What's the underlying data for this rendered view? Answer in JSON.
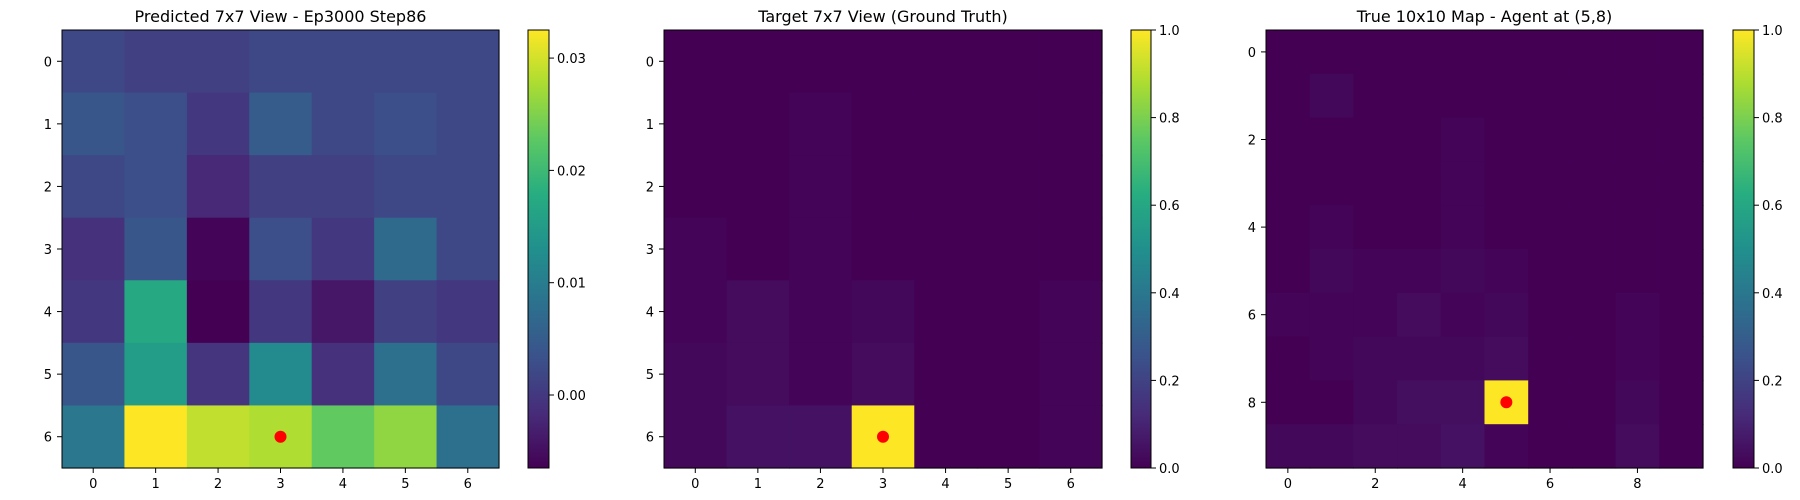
{
  "chart_data": [
    {
      "type": "heatmap",
      "title": "Predicted 7x7 View - Ep3000 Step86",
      "x_ticks": [
        "0",
        "1",
        "2",
        "3",
        "4",
        "5",
        "6"
      ],
      "y_ticks": [
        "0",
        "1",
        "2",
        "3",
        "4",
        "5",
        "6"
      ],
      "colormap": "viridis",
      "vmin": -0.0065,
      "vmax": 0.0325,
      "colorbar_ticks": [
        0.03,
        0.02,
        0.01,
        0.0,
        -0.01
      ],
      "colorbar_tick_labels": [
        "0.03",
        "0.02",
        "0.01",
        "0.00",
        "−0.01"
      ],
      "values": [
        [
          0.002,
          0.001,
          0.001,
          0.002,
          0.002,
          0.002,
          0.002
        ],
        [
          0.004,
          0.003,
          0.0,
          0.005,
          0.002,
          0.003,
          0.002
        ],
        [
          0.002,
          0.003,
          -0.002,
          0.001,
          0.001,
          0.002,
          0.002
        ],
        [
          -0.001,
          0.004,
          -0.006,
          0.003,
          0.0,
          0.007,
          0.002
        ],
        [
          0.0,
          0.017,
          -0.0065,
          0.0,
          -0.004,
          0.001,
          0.0
        ],
        [
          0.004,
          0.015,
          -0.0005,
          0.012,
          -0.001,
          0.008,
          0.002
        ],
        [
          0.009,
          0.0325,
          0.029,
          0.028,
          0.023,
          0.026,
          0.008
        ]
      ],
      "marker": {
        "x": 3,
        "y": 6,
        "color": "#ff0000"
      }
    },
    {
      "type": "heatmap",
      "title": "Target 7x7 View (Ground Truth)",
      "x_ticks": [
        "0",
        "1",
        "2",
        "3",
        "4",
        "5",
        "6"
      ],
      "y_ticks": [
        "0",
        "1",
        "2",
        "3",
        "4",
        "5",
        "6"
      ],
      "colormap": "viridis",
      "vmin": 0,
      "vmax": 1,
      "colorbar_ticks": [
        1.0,
        0.8,
        0.6,
        0.4,
        0.2,
        0.0
      ],
      "colorbar_tick_labels": [
        "1.0",
        "0.8",
        "0.6",
        "0.4",
        "0.2",
        "0.0"
      ],
      "values": [
        [
          0.0,
          0.0,
          0.0,
          0.0,
          0.0,
          0.0,
          0.0
        ],
        [
          0.0,
          0.0,
          0.01,
          0.0,
          0.0,
          0.0,
          0.0
        ],
        [
          0.0,
          0.0,
          0.01,
          0.0,
          0.0,
          0.0,
          0.0
        ],
        [
          0.01,
          0.0,
          0.01,
          0.0,
          0.0,
          0.0,
          0.0
        ],
        [
          0.01,
          0.03,
          0.01,
          0.02,
          0.0,
          0.0,
          0.01
        ],
        [
          0.02,
          0.03,
          0.01,
          0.03,
          0.0,
          0.0,
          0.01
        ],
        [
          0.02,
          0.05,
          0.05,
          1.0,
          0.0,
          0.0,
          0.01
        ]
      ],
      "marker": {
        "x": 3,
        "y": 6,
        "color": "#ff0000"
      }
    },
    {
      "type": "heatmap",
      "title": "True 10x10 Map - Agent at (5,8)",
      "x_ticks": [
        "0",
        "2",
        "4",
        "6",
        "8"
      ],
      "y_ticks": [
        "0",
        "2",
        "4",
        "6",
        "8"
      ],
      "tick_step": 2,
      "colormap": "viridis",
      "vmin": 0,
      "vmax": 1,
      "colorbar_ticks": [
        1.0,
        0.8,
        0.6,
        0.4,
        0.2,
        0.0
      ],
      "colorbar_tick_labels": [
        "1.0",
        "0.8",
        "0.6",
        "0.4",
        "0.2",
        "0.0"
      ],
      "values": [
        [
          0.0,
          0.0,
          0.0,
          0.0,
          0.0,
          0.0,
          0.0,
          0.0,
          0.0,
          0.0
        ],
        [
          0.0,
          0.02,
          0.0,
          0.0,
          0.0,
          0.0,
          0.0,
          0.0,
          0.0,
          0.0
        ],
        [
          0.0,
          0.0,
          0.0,
          0.0,
          0.01,
          0.0,
          0.0,
          0.0,
          0.0,
          0.0
        ],
        [
          0.0,
          0.0,
          0.0,
          0.0,
          0.01,
          0.0,
          0.0,
          0.0,
          0.0,
          0.0
        ],
        [
          0.0,
          0.01,
          0.0,
          0.0,
          0.01,
          0.0,
          0.0,
          0.0,
          0.0,
          0.0
        ],
        [
          0.0,
          0.02,
          0.01,
          0.01,
          0.02,
          0.01,
          0.0,
          0.0,
          0.0,
          0.0
        ],
        [
          0.01,
          0.01,
          0.01,
          0.03,
          0.01,
          0.02,
          0.0,
          0.0,
          0.01,
          0.0
        ],
        [
          0.0,
          0.01,
          0.02,
          0.02,
          0.02,
          0.03,
          0.0,
          0.0,
          0.01,
          0.0
        ],
        [
          0.0,
          0.0,
          0.02,
          0.04,
          0.04,
          1.0,
          0.0,
          0.0,
          0.02,
          0.0
        ],
        [
          0.02,
          0.02,
          0.03,
          0.03,
          0.05,
          0.01,
          0.0,
          0.0,
          0.03,
          0.0
        ]
      ],
      "marker": {
        "x": 5,
        "y": 8,
        "color": "#ff0000"
      }
    }
  ]
}
